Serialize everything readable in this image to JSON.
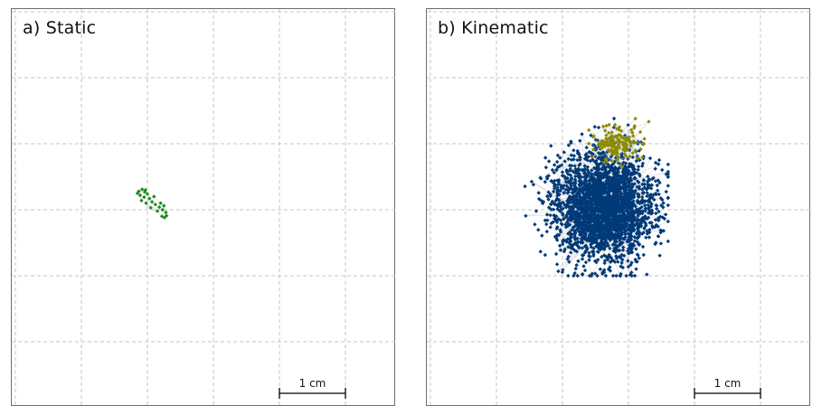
{
  "chart_data": [
    {
      "type": "scatter",
      "title": "a) Static",
      "scale_bar_label": "1 cm",
      "xlim": [
        -4,
        2.5
      ],
      "ylim": [
        -3,
        3
      ],
      "grid": true,
      "grid_spacing": 1,
      "series": [
        {
          "color": "#1e8b1e",
          "points": [
            [
              -2.13,
              0.28
            ],
            [
              -2.08,
              0.31
            ],
            [
              -2.04,
              0.27
            ],
            [
              -2.11,
              0.22
            ],
            [
              -2.05,
              0.19
            ],
            [
              -2.0,
              0.24
            ],
            [
              -1.97,
              0.17
            ],
            [
              -1.93,
              0.12
            ],
            [
              -1.88,
              0.08
            ],
            [
              -1.82,
              0.04
            ],
            [
              -1.77,
              0.0
            ],
            [
              -1.72,
              -0.04
            ],
            [
              -1.75,
              0.06
            ],
            [
              -1.8,
              0.1
            ],
            [
              -1.9,
              0.2
            ],
            [
              -2.02,
              0.1
            ],
            [
              -1.95,
              0.03
            ],
            [
              -1.85,
              -0.02
            ],
            [
              -1.78,
              -0.1
            ],
            [
              -1.74,
              -0.12
            ],
            [
              -1.71,
              -0.09
            ],
            [
              -2.09,
              0.14
            ],
            [
              -2.15,
              0.25
            ],
            [
              -2.03,
              0.3
            ]
          ]
        }
      ]
    },
    {
      "type": "scatter",
      "title": "b) Kinematic",
      "scale_bar_label": "1 cm",
      "xlim": [
        -4,
        2.5
      ],
      "ylim": [
        -3,
        3
      ],
      "grid": true,
      "grid_spacing": 1,
      "series": [
        {
          "color": "#003a78",
          "cluster": {
            "center": [
              -1.38,
              0.05
            ],
            "spread": [
              0.75,
              0.82
            ],
            "count": 2600,
            "extent_x": [
              -2.6,
              -0.4
            ],
            "extent_y": [
              -1.0,
              1.7
            ]
          }
        },
        {
          "color": "#8c8c00",
          "cluster": {
            "center": [
              -1.15,
              1.0
            ],
            "spread": [
              0.35,
              0.28
            ],
            "count": 140,
            "extent_x": [
              -1.6,
              -0.5
            ],
            "extent_y": [
              0.6,
              1.4
            ]
          }
        }
      ]
    }
  ]
}
